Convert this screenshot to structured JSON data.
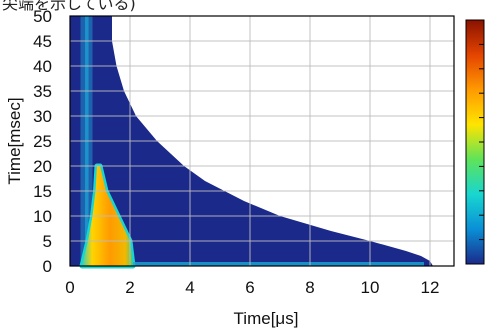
{
  "caption_fragment": "尖端を示している)",
  "chart_data": {
    "type": "heatmap",
    "xlabel": "Time[μs]",
    "ylabel": "Time[msec]",
    "xlim": [
      0,
      12.8
    ],
    "ylim": [
      0,
      50
    ],
    "xticks": [
      0,
      2,
      4,
      6,
      8,
      10,
      12
    ],
    "yticks": [
      0,
      5,
      10,
      15,
      20,
      25,
      30,
      35,
      40,
      45,
      50
    ],
    "grid": true,
    "colorbar": {
      "placement": "right",
      "colors": [
        "#1b2a8a",
        "#0a8fd6",
        "#18d6d0",
        "#5fe35a",
        "#ffe400",
        "#ff9a00",
        "#e44400",
        "#8a1200"
      ]
    },
    "data_region_boundary": {
      "description": "right edge of recorded data (time of last sample) vs row time",
      "points": [
        {
          "t_ms": 0,
          "edge_us": 12.1
        },
        {
          "t_ms": 1,
          "edge_us": 12.0
        },
        {
          "t_ms": 2,
          "edge_us": 11.7
        },
        {
          "t_ms": 3,
          "edge_us": 11.2
        },
        {
          "t_ms": 5,
          "edge_us": 10.0
        },
        {
          "t_ms": 7,
          "edge_us": 8.7
        },
        {
          "t_ms": 10,
          "edge_us": 7.0
        },
        {
          "t_ms": 13,
          "edge_us": 5.8
        },
        {
          "t_ms": 17,
          "edge_us": 4.5
        },
        {
          "t_ms": 20,
          "edge_us": 3.8
        },
        {
          "t_ms": 25,
          "edge_us": 2.9
        },
        {
          "t_ms": 30,
          "edge_us": 2.2
        },
        {
          "t_ms": 35,
          "edge_us": 1.8
        },
        {
          "t_ms": 40,
          "edge_us": 1.55
        },
        {
          "t_ms": 45,
          "edge_us": 1.4
        },
        {
          "t_ms": 50,
          "edge_us": 1.4
        }
      ]
    },
    "hot_region": {
      "description": "high-intensity (yellow/orange) band near the origin",
      "points": [
        {
          "t_ms": 0,
          "left_us": 0.4,
          "right_us": 2.1
        },
        {
          "t_ms": 5,
          "left_us": 0.6,
          "right_us": 2.0
        },
        {
          "t_ms": 10,
          "left_us": 0.75,
          "right_us": 1.6
        },
        {
          "t_ms": 15,
          "left_us": 0.85,
          "right_us": 1.2
        },
        {
          "t_ms": 20,
          "left_us": 0.9,
          "right_us": 1.0
        }
      ]
    }
  }
}
